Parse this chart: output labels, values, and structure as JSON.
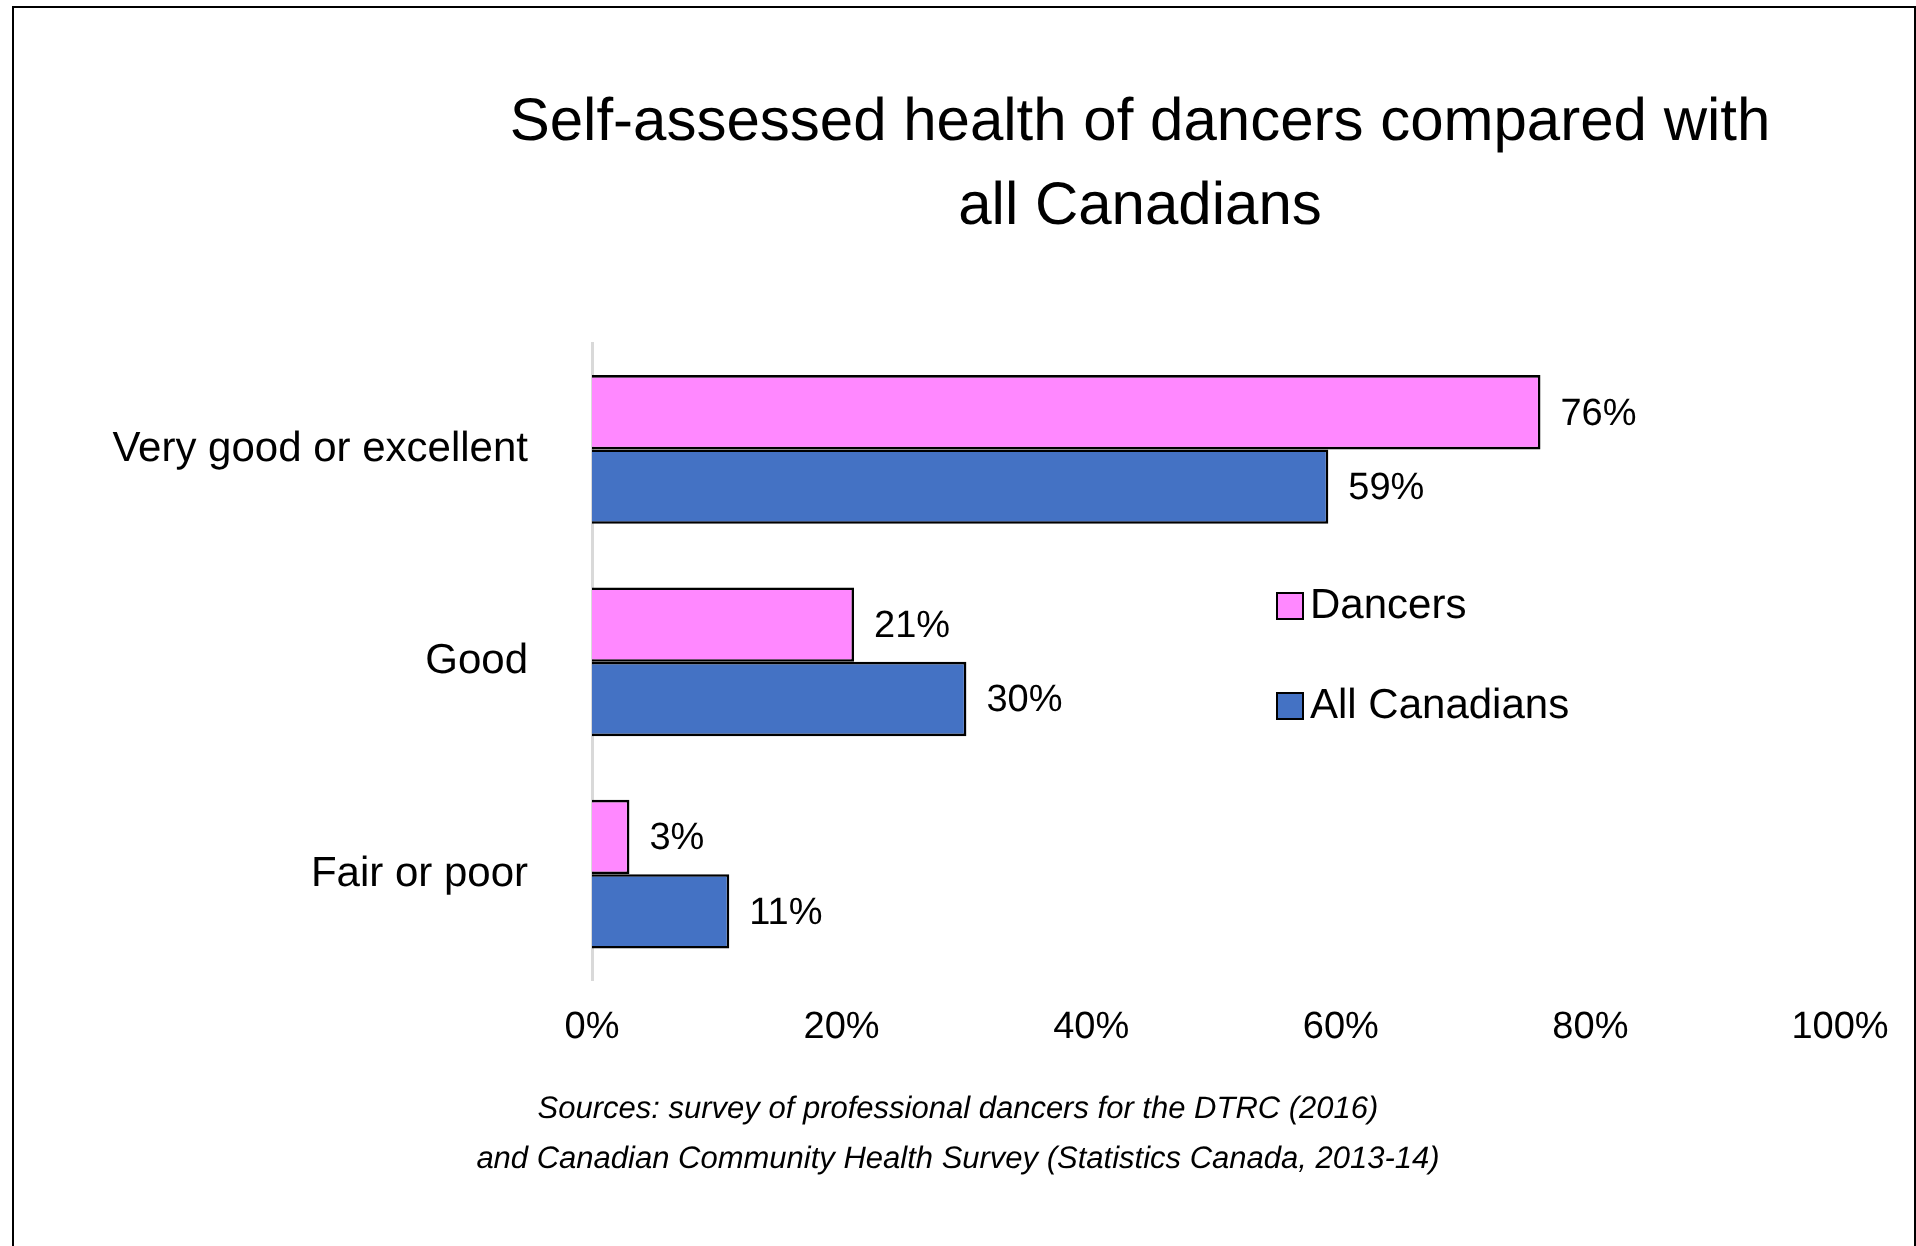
{
  "chart_data": {
    "type": "bar",
    "orientation": "horizontal",
    "title": "Self-assessed health of dancers compared with all Canadians",
    "categories": [
      "Very good or excellent",
      "Good",
      "Fair or poor"
    ],
    "series": [
      {
        "name": "Dancers",
        "color": "#ff88ff",
        "values": [
          76,
          21,
          3
        ],
        "value_labels": [
          "76%",
          "21%",
          "3%"
        ]
      },
      {
        "name": "All Canadians",
        "color": "#4472c4",
        "values": [
          59,
          30,
          11
        ],
        "value_labels": [
          "59%",
          "30%",
          "11%"
        ]
      }
    ],
    "xlim": [
      0,
      100
    ],
    "xticks": [
      {
        "value": 0,
        "label": "0%"
      },
      {
        "value": 20,
        "label": "20%"
      },
      {
        "value": 40,
        "label": "40%"
      },
      {
        "value": 60,
        "label": "60%"
      },
      {
        "value": 80,
        "label": "80%"
      },
      {
        "value": 100,
        "label": "100%"
      }
    ],
    "grid": false,
    "legend": "right",
    "annotations": [
      "Sources: survey of professional dancers for the DTRC (2016)",
      "and Canadian Community Health Survey (Statistics Canada, 2013-14)"
    ]
  }
}
